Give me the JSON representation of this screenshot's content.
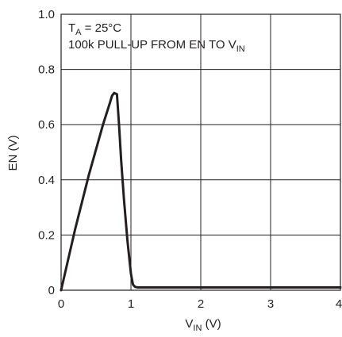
{
  "chart_data": {
    "type": "line",
    "title": "",
    "xlabel_main": "V",
    "xlabel_sub": "IN",
    "xlabel_unit": " (V)",
    "ylabel": "EN (V)",
    "xlim": [
      0,
      4
    ],
    "ylim": [
      0,
      1.0
    ],
    "xticks": [
      "0",
      "1",
      "2",
      "3",
      "4"
    ],
    "yticks": [
      "0",
      "0.2",
      "0.4",
      "0.6",
      "0.8",
      "1.0"
    ],
    "grid": true,
    "annotations": {
      "line1_main": "T",
      "line1_sub": "A",
      "line1_rest": " = 25°C",
      "line2_main": "100k PULL-UP FROM EN TO V",
      "line2_sub": "IN"
    },
    "series": [
      {
        "x": [
          0,
          0.1,
          0.2,
          0.3,
          0.4,
          0.5,
          0.6,
          0.7,
          0.73,
          0.76,
          0.8,
          0.83,
          0.86,
          0.9,
          0.95,
          1.0,
          1.03,
          1.06,
          1.1,
          1.2,
          1.5,
          2.0,
          3.0,
          4.0
        ],
        "y": [
          0,
          0.11,
          0.22,
          0.32,
          0.42,
          0.51,
          0.6,
          0.68,
          0.705,
          0.715,
          0.71,
          0.6,
          0.47,
          0.33,
          0.18,
          0.06,
          0.02,
          0.012,
          0.01,
          0.01,
          0.01,
          0.01,
          0.01,
          0.01
        ]
      }
    ]
  }
}
